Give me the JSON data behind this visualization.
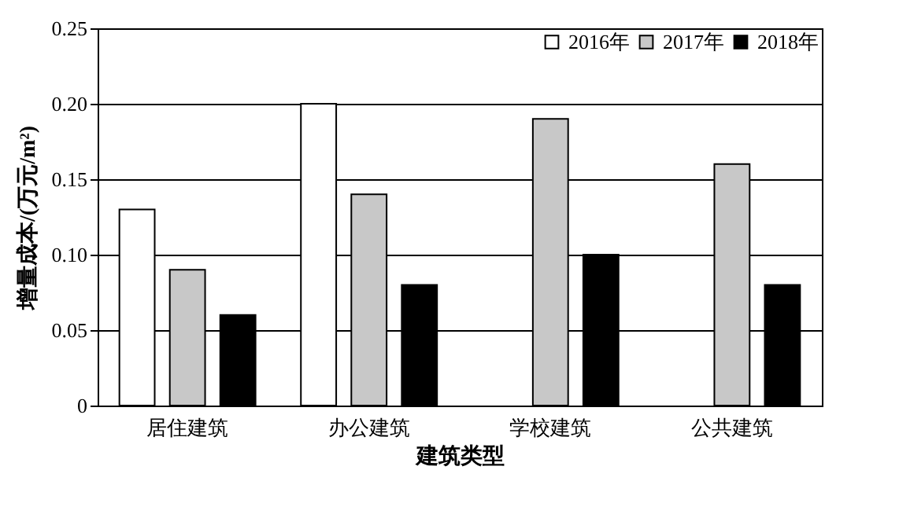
{
  "chart_data": {
    "type": "bar",
    "xlabel": "建筑类型",
    "ylabel": "增量成本/(万元/m²)",
    "categories": [
      "居住建筑",
      "办公建筑",
      "学校建筑",
      "公共建筑"
    ],
    "series": [
      {
        "name": "2016年",
        "color": "#ffffff",
        "values": [
          0.13,
          0.2,
          null,
          null
        ]
      },
      {
        "name": "2017年",
        "color": "#c8c8c8",
        "values": [
          0.09,
          0.14,
          0.19,
          0.16
        ]
      },
      {
        "name": "2018年",
        "color": "#000000",
        "values": [
          0.06,
          0.08,
          0.1,
          0.08
        ]
      }
    ],
    "ylim": [
      0,
      0.25
    ],
    "yticks": [
      {
        "value": 0,
        "label": "0"
      },
      {
        "value": 0.05,
        "label": "0.05"
      },
      {
        "value": 0.1,
        "label": "0.10"
      },
      {
        "value": 0.15,
        "label": "0.15"
      },
      {
        "value": 0.2,
        "label": "0.20"
      },
      {
        "value": 0.25,
        "label": "0.25"
      }
    ],
    "grid": "y",
    "legend": "top right"
  }
}
